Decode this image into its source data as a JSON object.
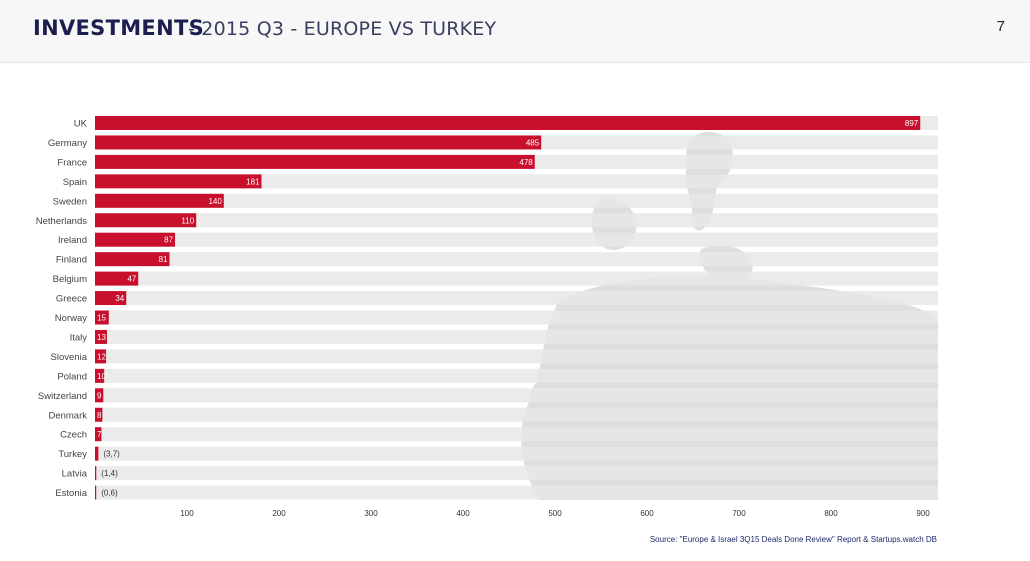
{
  "header": {
    "title": "INVESTMENTS",
    "subtitle": "- 2015 Q3 - EUROPE VS TURKEY",
    "page_number": "7"
  },
  "colors": {
    "bar": "#c8102e",
    "track": "#e7e7e7",
    "map": "#dedede",
    "label": "#444444",
    "value_outside": "#333333"
  },
  "icons": {
    "background": "europe-map-icon"
  },
  "chart_data": {
    "type": "bar",
    "orientation": "horizontal",
    "title": "",
    "xlabel": "",
    "ylabel": "",
    "xlim": [
      0,
      920
    ],
    "categories": [
      "UK",
      "Germany",
      "France",
      "Spain",
      "Sweden",
      "Netherlands",
      "Ireland",
      "Finland",
      "Belgium",
      "Greece",
      "Norway",
      "Italy",
      "Slovenia",
      "Poland",
      "Switzerland",
      "Denmark",
      "Czech",
      "Turkey",
      "Latvia",
      "Estonia"
    ],
    "values": [
      897,
      485,
      478,
      181,
      140,
      110,
      87,
      81,
      47,
      34,
      15,
      13,
      12,
      10,
      9,
      8,
      7,
      3.7,
      1.4,
      0.6
    ],
    "value_labels": [
      "897",
      "485",
      "478",
      "181",
      "140",
      "110",
      "87",
      "81",
      "47",
      "34",
      "15",
      "13",
      "12",
      "10",
      "9",
      "8",
      "7",
      "(3,7)",
      "(1,4)",
      "(0,6)"
    ],
    "x_ticks": [
      100,
      200,
      300,
      400,
      500,
      600,
      700,
      800,
      900
    ],
    "x_tick_labels": [
      "100",
      "200",
      "300",
      "400",
      "500",
      "600",
      "700",
      "800",
      "900"
    ]
  },
  "footer": {
    "source": "Source: \"Europe & Israel 3Q15 Deals Done Review\" Report & Startups.watch DB"
  }
}
